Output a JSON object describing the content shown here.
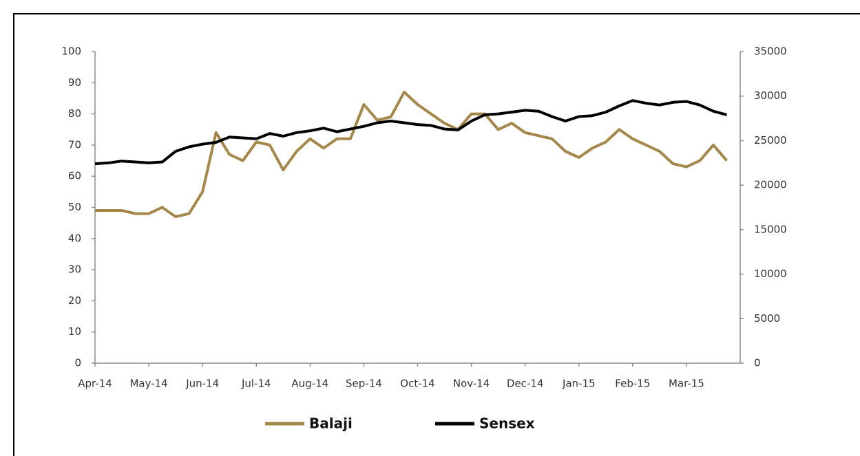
{
  "chart_data": {
    "type": "line",
    "categories": [
      "Apr-14",
      null,
      null,
      null,
      "May-14",
      null,
      null,
      null,
      "Jun-14",
      null,
      null,
      null,
      "Jul-14",
      null,
      null,
      null,
      "Aug-14",
      null,
      null,
      null,
      "Sep-14",
      null,
      null,
      null,
      "Oct-14",
      null,
      null,
      null,
      "Nov-14",
      null,
      null,
      null,
      "Dec-14",
      null,
      null,
      null,
      "Jan-15",
      null,
      null,
      null,
      "Feb-15",
      null,
      null,
      null,
      "Mar-15",
      null,
      null,
      null
    ],
    "series": [
      {
        "name": "Balaji",
        "color": "#a4874a",
        "values": [
          49,
          49,
          49,
          48,
          48,
          50,
          47,
          48,
          55,
          74,
          67,
          65,
          71,
          70,
          62,
          68,
          72,
          69,
          72,
          72,
          83,
          78,
          79,
          87,
          83,
          80,
          77,
          75,
          80,
          80,
          75,
          77,
          74,
          73,
          72,
          68,
          66,
          69,
          71,
          75,
          72,
          70,
          68,
          64,
          63,
          65,
          70,
          65
        ]
      },
      {
        "name": "Sensex",
        "color": "#000000",
        "axis": "y2",
        "values": [
          22400,
          22500,
          22700,
          22600,
          22500,
          22600,
          23800,
          24300,
          24600,
          24800,
          25400,
          25300,
          25200,
          25800,
          25500,
          25900,
          26100,
          26400,
          26000,
          26300,
          26600,
          27000,
          27200,
          27000,
          26800,
          26700,
          26300,
          26200,
          27200,
          27900,
          28000,
          28200,
          28400,
          28300,
          27700,
          27200,
          27700,
          27800,
          28200,
          28900,
          29500,
          29200,
          29000,
          29300,
          29400,
          29000,
          28300,
          27900
        ]
      }
    ],
    "ylim": [
      0,
      100
    ],
    "yticks": [
      0,
      10,
      20,
      30,
      40,
      50,
      60,
      70,
      80,
      90,
      100
    ],
    "y2lim": [
      0,
      35000
    ],
    "y2ticks": [
      0,
      5000,
      10000,
      15000,
      20000,
      25000,
      30000,
      35000
    ],
    "legend": "bottom"
  }
}
